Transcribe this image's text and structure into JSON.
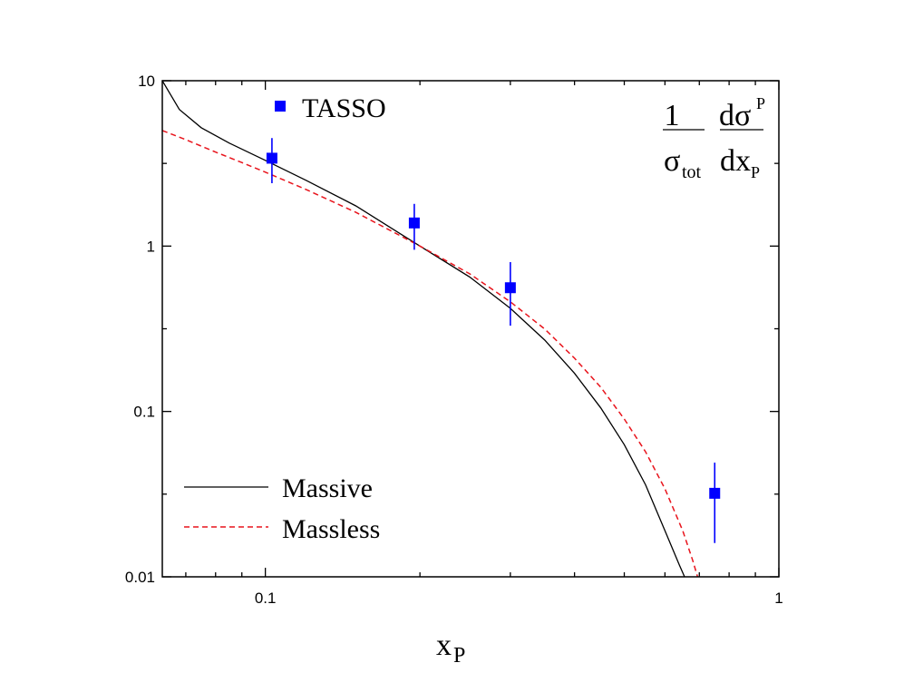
{
  "chart_data": {
    "type": "line",
    "xlabel": "x",
    "xlabel_sub": "P",
    "xscale": "log",
    "yscale": "log",
    "xlim": [
      0.063,
      1.0
    ],
    "ylim": [
      0.01,
      10
    ],
    "x_ticks": [
      {
        "value": 0.1,
        "label": "0.1"
      },
      {
        "value": 1,
        "label": "1"
      }
    ],
    "y_ticks": [
      {
        "value": 10,
        "label": "10"
      },
      {
        "value": 1,
        "label": "1"
      },
      {
        "value": 0.1,
        "label": "0.1"
      },
      {
        "value": 0.01,
        "label": "0.01"
      }
    ],
    "formula": {
      "num1": "1",
      "den1": "σ",
      "den1_sub": "tot",
      "num2": "dσ",
      "num2_sup": "P",
      "den2": "dx",
      "den2_sub": "P"
    },
    "series": [
      {
        "name": "Massive",
        "type": "line",
        "style": "solid",
        "color": "#000000",
        "x": [
          0.063,
          0.068,
          0.075,
          0.085,
          0.1,
          0.12,
          0.15,
          0.2,
          0.25,
          0.3,
          0.35,
          0.4,
          0.45,
          0.5,
          0.55,
          0.6,
          0.64,
          0.66
        ],
        "y": [
          10,
          6.7,
          5.2,
          4.2,
          3.3,
          2.5,
          1.75,
          1.0,
          0.65,
          0.42,
          0.27,
          0.17,
          0.105,
          0.063,
          0.036,
          0.019,
          0.0118,
          0.0095
        ]
      },
      {
        "name": "Massless",
        "type": "line",
        "style": "dashed",
        "color": "#e8141c",
        "x": [
          0.063,
          0.07,
          0.08,
          0.09,
          0.1,
          0.12,
          0.15,
          0.2,
          0.25,
          0.3,
          0.35,
          0.4,
          0.45,
          0.5,
          0.55,
          0.6,
          0.65,
          0.68,
          0.7
        ],
        "y": [
          5.0,
          4.4,
          3.7,
          3.2,
          2.8,
          2.2,
          1.6,
          1.0,
          0.68,
          0.46,
          0.315,
          0.21,
          0.14,
          0.09,
          0.057,
          0.034,
          0.019,
          0.0125,
          0.0092
        ]
      },
      {
        "name": "TASSO",
        "type": "scatter",
        "color": "#0000ff",
        "x": [
          0.103,
          0.195,
          0.3,
          0.75
        ],
        "y": [
          3.4,
          1.38,
          0.56,
          0.032
        ],
        "y_low": [
          2.4,
          0.95,
          0.33,
          0.016
        ],
        "y_high": [
          4.5,
          1.8,
          0.8,
          0.049
        ]
      }
    ],
    "legend": {
      "scatter_placement": "top-left",
      "lines_placement": "bottom-left"
    },
    "grid": false
  }
}
